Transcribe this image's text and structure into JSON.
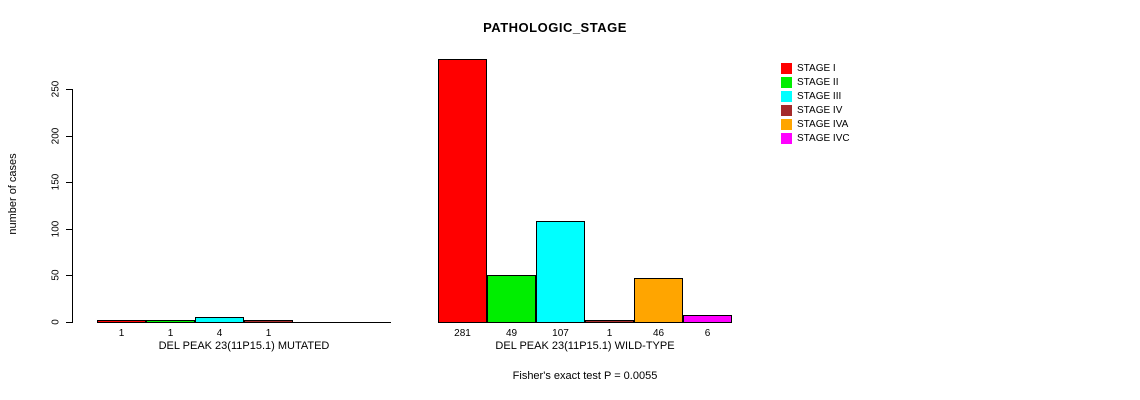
{
  "chart_data": {
    "type": "bar",
    "title": "PATHOLOGIC_STAGE",
    "ylabel": "number of cases",
    "ylim": [
      0,
      250
    ],
    "yticks": [
      0,
      50,
      100,
      150,
      200,
      250
    ],
    "grid": false,
    "legend_position": "right",
    "series": [
      {
        "name": "STAGE I",
        "color": "#FF0000"
      },
      {
        "name": "STAGE II",
        "color": "#00EE00"
      },
      {
        "name": "STAGE III",
        "color": "#00FFFF"
      },
      {
        "name": "STAGE IV",
        "color": "#A52A2A"
      },
      {
        "name": "STAGE IVA",
        "color": "#FFA500"
      },
      {
        "name": "STAGE IVC",
        "color": "#FF00FF"
      }
    ],
    "groups": [
      {
        "label": "DEL PEAK 23(11P15.1) MUTATED",
        "values": [
          1,
          1,
          4,
          1,
          null,
          null
        ]
      },
      {
        "label": "DEL PEAK 23(11P15.1) WILD-TYPE",
        "values": [
          281,
          49,
          107,
          1,
          46,
          6
        ]
      }
    ],
    "footnote": "Fisher's exact test P = 0.0055"
  }
}
